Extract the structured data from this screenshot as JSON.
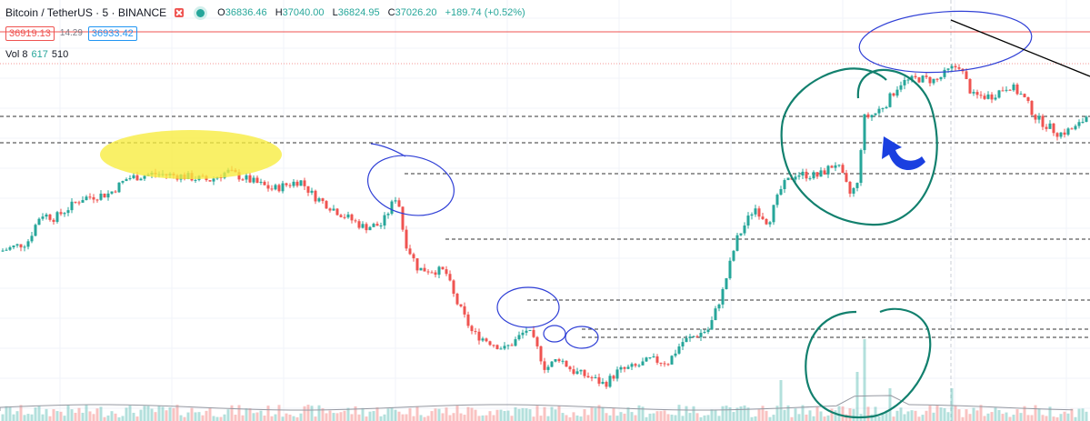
{
  "header": {
    "symbol": "Bitcoin / TetherUS · 5 · BINANCE",
    "ohlc": [
      {
        "label": "O",
        "value": "36836.46"
      },
      {
        "label": "H",
        "value": "37040.00"
      },
      {
        "label": "L",
        "value": "36824.95"
      },
      {
        "label": "C",
        "value": "37026.20"
      }
    ],
    "change": "+189.74 (+0.52%)",
    "bid": "36919.13",
    "spread": "14.29",
    "ask": "36933.42",
    "volume_label": "Vol 8",
    "volume_value": "617",
    "volume_ma": "510"
  },
  "colors": {
    "up": "#26a69a",
    "down": "#ef5350",
    "price_line": "#ef5350",
    "marker_blue": "#2f3fd6",
    "marker_teal": "#12806e",
    "highlight": "#f7ec3c",
    "arrow": "#1a3fe0"
  },
  "icons": [
    "close-icon",
    "status-dot-icon"
  ],
  "chart_data": {
    "type": "candlestick",
    "title": "Bitcoin / TetherUS · 5 · BINANCE",
    "ylim": [
      35500,
      37100
    ],
    "grid": true,
    "current_price": 36919.13,
    "price_path": [
      [
        0,
        36130
      ],
      [
        30,
        36170
      ],
      [
        45,
        36300
      ],
      [
        60,
        36280
      ],
      [
        90,
        36370
      ],
      [
        120,
        36390
      ],
      [
        140,
        36460
      ],
      [
        170,
        36480
      ],
      [
        200,
        36470
      ],
      [
        230,
        36450
      ],
      [
        250,
        36490
      ],
      [
        275,
        36450
      ],
      [
        300,
        36410
      ],
      [
        330,
        36450
      ],
      [
        345,
        36380
      ],
      [
        375,
        36300
      ],
      [
        400,
        36240
      ],
      [
        420,
        36250
      ],
      [
        437,
        36390
      ],
      [
        445,
        36180
      ],
      [
        460,
        36050
      ],
      [
        490,
        36040
      ],
      [
        500,
        35920
      ],
      [
        520,
        35760
      ],
      [
        540,
        35720
      ],
      [
        555,
        35690
      ],
      [
        565,
        35720
      ],
      [
        580,
        35780
      ],
      [
        590,
        35700
      ],
      [
        600,
        35600
      ],
      [
        615,
        35650
      ],
      [
        630,
        35590
      ],
      [
        650,
        35560
      ],
      [
        665,
        35530
      ],
      [
        680,
        35590
      ],
      [
        700,
        35610
      ],
      [
        715,
        35640
      ],
      [
        735,
        35630
      ],
      [
        750,
        35720
      ],
      [
        765,
        35750
      ],
      [
        780,
        35780
      ],
      [
        795,
        35950
      ],
      [
        810,
        36180
      ],
      [
        830,
        36330
      ],
      [
        845,
        36260
      ],
      [
        860,
        36420
      ],
      [
        875,
        36480
      ],
      [
        900,
        36470
      ],
      [
        920,
        36530
      ],
      [
        935,
        36390
      ],
      [
        943,
        36430
      ],
      [
        950,
        36730
      ],
      [
        962,
        36750
      ],
      [
        975,
        36800
      ],
      [
        990,
        36890
      ],
      [
        1010,
        36910
      ],
      [
        1030,
        36900
      ],
      [
        1045,
        36950
      ],
      [
        1055,
        36970
      ],
      [
        1070,
        36830
      ],
      [
        1090,
        36830
      ],
      [
        1110,
        36880
      ],
      [
        1125,
        36830
      ],
      [
        1140,
        36730
      ],
      [
        1165,
        36660
      ],
      [
        1185,
        36690
      ],
      [
        1199,
        36760
      ]
    ],
    "horizontal_levels": [
      36710,
      36660,
      36380,
      36060,
      35820,
      35730,
      35710
    ],
    "volume_spikes": [
      [
        942,
        6
      ],
      [
        952,
        10
      ],
      [
        978,
        4
      ],
      [
        860,
        5
      ],
      [
        1046,
        4
      ]
    ]
  }
}
